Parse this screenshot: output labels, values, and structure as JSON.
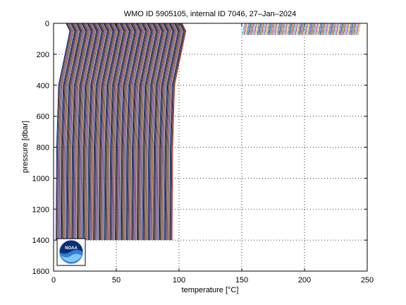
{
  "chart_data": {
    "type": "line",
    "title": "WMO ID 5905105, internal ID 7046, 27–Jan–2024",
    "xlabel": "temperature [°C]",
    "ylabel": "pressure [dbar]",
    "xlim": [
      0,
      250
    ],
    "ylim": [
      0,
      1600
    ],
    "y_reversed": true,
    "grid": true,
    "x_ticks": [
      0,
      50,
      100,
      150,
      200,
      250
    ],
    "y_ticks": [
      0,
      200,
      400,
      600,
      800,
      1000,
      1200,
      1400,
      1600
    ],
    "profile_series": {
      "description": "Successive temperature profiles, each offset along the temperature axis",
      "count": 230,
      "first_offset": 2,
      "offset_step_deep": 0.62,
      "deep_profiles_end_index": 150,
      "max_pressure": 1400,
      "shallow_profiles_max_pressure": 75,
      "shallow_profiles_x_range": [
        152,
        244
      ]
    },
    "series_colors": [
      "#0000ff",
      "#008000",
      "#ff0000",
      "#00bfbf",
      "#bf00bf",
      "#bfbf00",
      "#404040"
    ]
  },
  "logo": {
    "name": "NOAA"
  }
}
